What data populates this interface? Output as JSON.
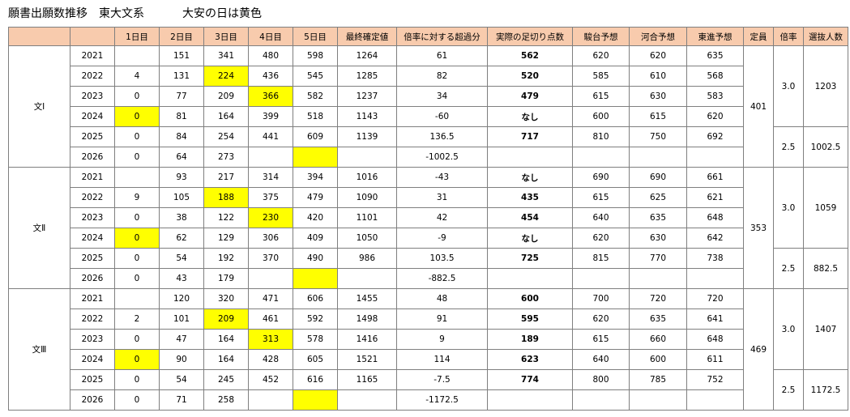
{
  "title": {
    "main": "願書出願数推移　東大文系",
    "note": "大安の日は黄色"
  },
  "headers": [
    "",
    "",
    "1日目",
    "2日目",
    "3日目",
    "4日目",
    "5日目",
    "最終確定値",
    "倍率に対する超過分",
    "実際の足切り点数",
    "駿台予想",
    "河合予想",
    "東進予想",
    "定員",
    "倍率",
    "選抜人数"
  ],
  "groups": [
    {
      "name": "文Ⅰ",
      "capacity": "401",
      "ratios": [
        {
          "ratio": "3.0",
          "selected": "1203",
          "rows": 4
        },
        {
          "ratio": "2.5",
          "selected": "1002.5",
          "rows": 2
        }
      ],
      "rows": [
        {
          "year": "2021",
          "d1": "",
          "d2": "151",
          "d3": "341",
          "d4": "480",
          "d5": "598",
          "final": "1264",
          "excess": "61",
          "cutoff": "562",
          "sundai": "620",
          "kawai": "620",
          "toshin": "635"
        },
        {
          "year": "2022",
          "d1": "4",
          "d2": "131",
          "d3": "224",
          "d4": "436",
          "d5": "545",
          "final": "1285",
          "excess": "82",
          "cutoff": "520",
          "sundai": "585",
          "kawai": "610",
          "toshin": "568"
        },
        {
          "year": "2023",
          "d1": "0",
          "d2": "77",
          "d3": "209",
          "d4": "366",
          "d5": "582",
          "final": "1237",
          "excess": "34",
          "cutoff": "479",
          "sundai": "615",
          "kawai": "630",
          "toshin": "583"
        },
        {
          "year": "2024",
          "d1": "0",
          "d2": "81",
          "d3": "164",
          "d4": "399",
          "d5": "518",
          "final": "1143",
          "excess": "-60",
          "cutoff": "なし",
          "sundai": "600",
          "kawai": "615",
          "toshin": "620"
        },
        {
          "year": "2025",
          "d1": "0",
          "d2": "84",
          "d3": "254",
          "d4": "441",
          "d5": "609",
          "final": "1139",
          "excess": "136.5",
          "cutoff": "717",
          "sundai": "810",
          "kawai": "750",
          "toshin": "692"
        },
        {
          "year": "2026",
          "d1": "0",
          "d2": "64",
          "d3": "273",
          "d4": "",
          "d5": "",
          "final": "",
          "excess": "-1002.5",
          "cutoff": "",
          "sundai": "",
          "kawai": "",
          "toshin": ""
        }
      ]
    },
    {
      "name": "文Ⅱ",
      "capacity": "353",
      "ratios": [
        {
          "ratio": "3.0",
          "selected": "1059",
          "rows": 4
        },
        {
          "ratio": "2.5",
          "selected": "882.5",
          "rows": 2
        }
      ],
      "rows": [
        {
          "year": "2021",
          "d1": "",
          "d2": "93",
          "d3": "217",
          "d4": "314",
          "d5": "394",
          "final": "1016",
          "excess": "-43",
          "cutoff": "なし",
          "sundai": "690",
          "kawai": "690",
          "toshin": "661"
        },
        {
          "year": "2022",
          "d1": "9",
          "d2": "105",
          "d3": "188",
          "d4": "375",
          "d5": "479",
          "final": "1090",
          "excess": "31",
          "cutoff": "435",
          "sundai": "615",
          "kawai": "625",
          "toshin": "621"
        },
        {
          "year": "2023",
          "d1": "0",
          "d2": "38",
          "d3": "122",
          "d4": "230",
          "d5": "420",
          "final": "1101",
          "excess": "42",
          "cutoff": "454",
          "sundai": "640",
          "kawai": "635",
          "toshin": "648"
        },
        {
          "year": "2024",
          "d1": "0",
          "d2": "62",
          "d3": "129",
          "d4": "306",
          "d5": "409",
          "final": "1050",
          "excess": "-9",
          "cutoff": "なし",
          "sundai": "620",
          "kawai": "630",
          "toshin": "642"
        },
        {
          "year": "2025",
          "d1": "0",
          "d2": "54",
          "d3": "192",
          "d4": "370",
          "d5": "490",
          "final": "986",
          "excess": "103.5",
          "cutoff": "725",
          "sundai": "815",
          "kawai": "770",
          "toshin": "738"
        },
        {
          "year": "2026",
          "d1": "0",
          "d2": "43",
          "d3": "179",
          "d4": "",
          "d5": "",
          "final": "",
          "excess": "-882.5",
          "cutoff": "",
          "sundai": "",
          "kawai": "",
          "toshin": ""
        }
      ]
    },
    {
      "name": "文Ⅲ",
      "capacity": "469",
      "ratios": [
        {
          "ratio": "3.0",
          "selected": "1407",
          "rows": 4
        },
        {
          "ratio": "2.5",
          "selected": "1172.5",
          "rows": 2
        }
      ],
      "rows": [
        {
          "year": "2021",
          "d1": "",
          "d2": "120",
          "d3": "320",
          "d4": "471",
          "d5": "606",
          "final": "1455",
          "excess": "48",
          "cutoff": "600",
          "sundai": "700",
          "kawai": "720",
          "toshin": "720"
        },
        {
          "year": "2022",
          "d1": "2",
          "d2": "101",
          "d3": "209",
          "d4": "461",
          "d5": "592",
          "final": "1498",
          "excess": "91",
          "cutoff": "595",
          "sundai": "620",
          "kawai": "635",
          "toshin": "641"
        },
        {
          "year": "2023",
          "d1": "0",
          "d2": "47",
          "d3": "164",
          "d4": "313",
          "d5": "578",
          "final": "1416",
          "excess": "9",
          "cutoff": "189",
          "sundai": "615",
          "kawai": "660",
          "toshin": "648"
        },
        {
          "year": "2024",
          "d1": "0",
          "d2": "90",
          "d3": "164",
          "d4": "428",
          "d5": "605",
          "final": "1521",
          "excess": "114",
          "cutoff": "623",
          "sundai": "640",
          "kawai": "600",
          "toshin": "611"
        },
        {
          "year": "2025",
          "d1": "0",
          "d2": "54",
          "d3": "245",
          "d4": "452",
          "d5": "616",
          "final": "1165",
          "excess": "-7.5",
          "cutoff": "774",
          "sundai": "800",
          "kawai": "785",
          "toshin": "752"
        },
        {
          "year": "2026",
          "d1": "0",
          "d2": "71",
          "d3": "258",
          "d4": "",
          "d5": "",
          "final": "",
          "excess": "-1172.5",
          "cutoff": "",
          "sundai": "",
          "kawai": "",
          "toshin": ""
        }
      ]
    }
  ],
  "highlights": {
    "2022": "d3",
    "2023": "d4",
    "2024": "d1",
    "2026": "d5"
  },
  "colors": {
    "header_bg": "#f8cbad",
    "highlight": "#ffff00",
    "border": "#7f7f7f"
  }
}
